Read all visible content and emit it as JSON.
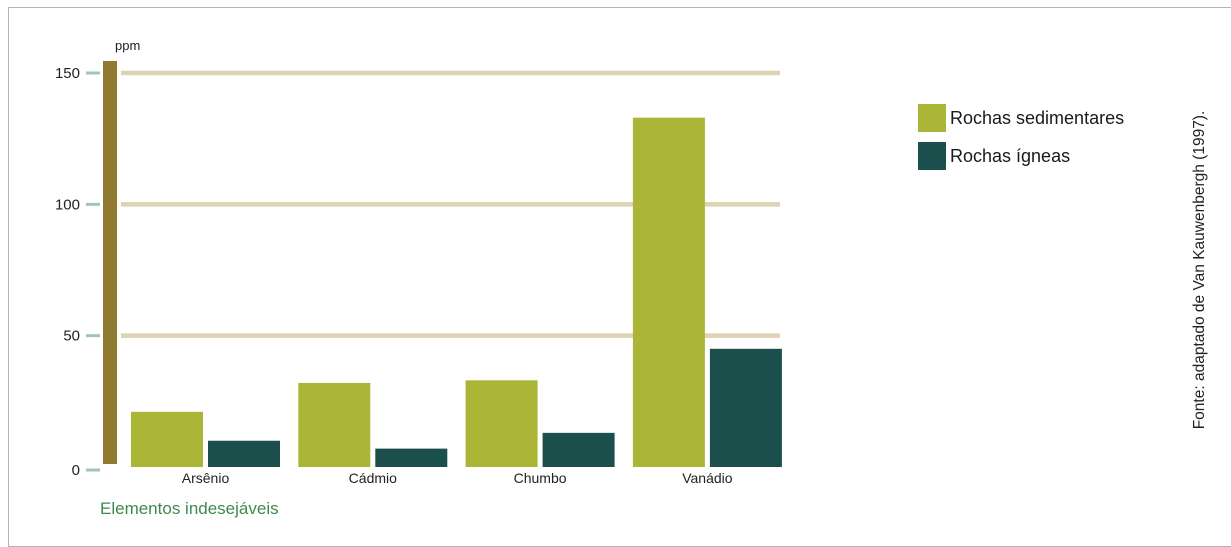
{
  "chart_data": {
    "type": "bar",
    "categories": [
      "Arsênio",
      "Cádmio",
      "Chumbo",
      "Vanádio"
    ],
    "series": [
      {
        "name": "Rochas sedimentares",
        "values": [
          21,
          32,
          33,
          133
        ],
        "color": "#abb536"
      },
      {
        "name": "Rochas ígneas",
        "values": [
          10,
          7,
          13,
          45
        ],
        "color": "#1a4f4c"
      }
    ],
    "title": "",
    "xlabel": "Elementos indesejáveis",
    "ylabel": "ppm",
    "ylim": [
      0,
      150
    ],
    "yticks": [
      "0",
      "50",
      "100",
      "150"
    ],
    "gridlines": [
      50,
      100,
      150
    ],
    "legend_position": "top-right",
    "source": "Fonte: adaptado de Van Kauwenbergh (1997).",
    "colors": {
      "axis": "#8f7a30",
      "grid": "#ddd2b3",
      "tick": "#9fc7ae",
      "xlabel": "#3d8a4f"
    }
  }
}
